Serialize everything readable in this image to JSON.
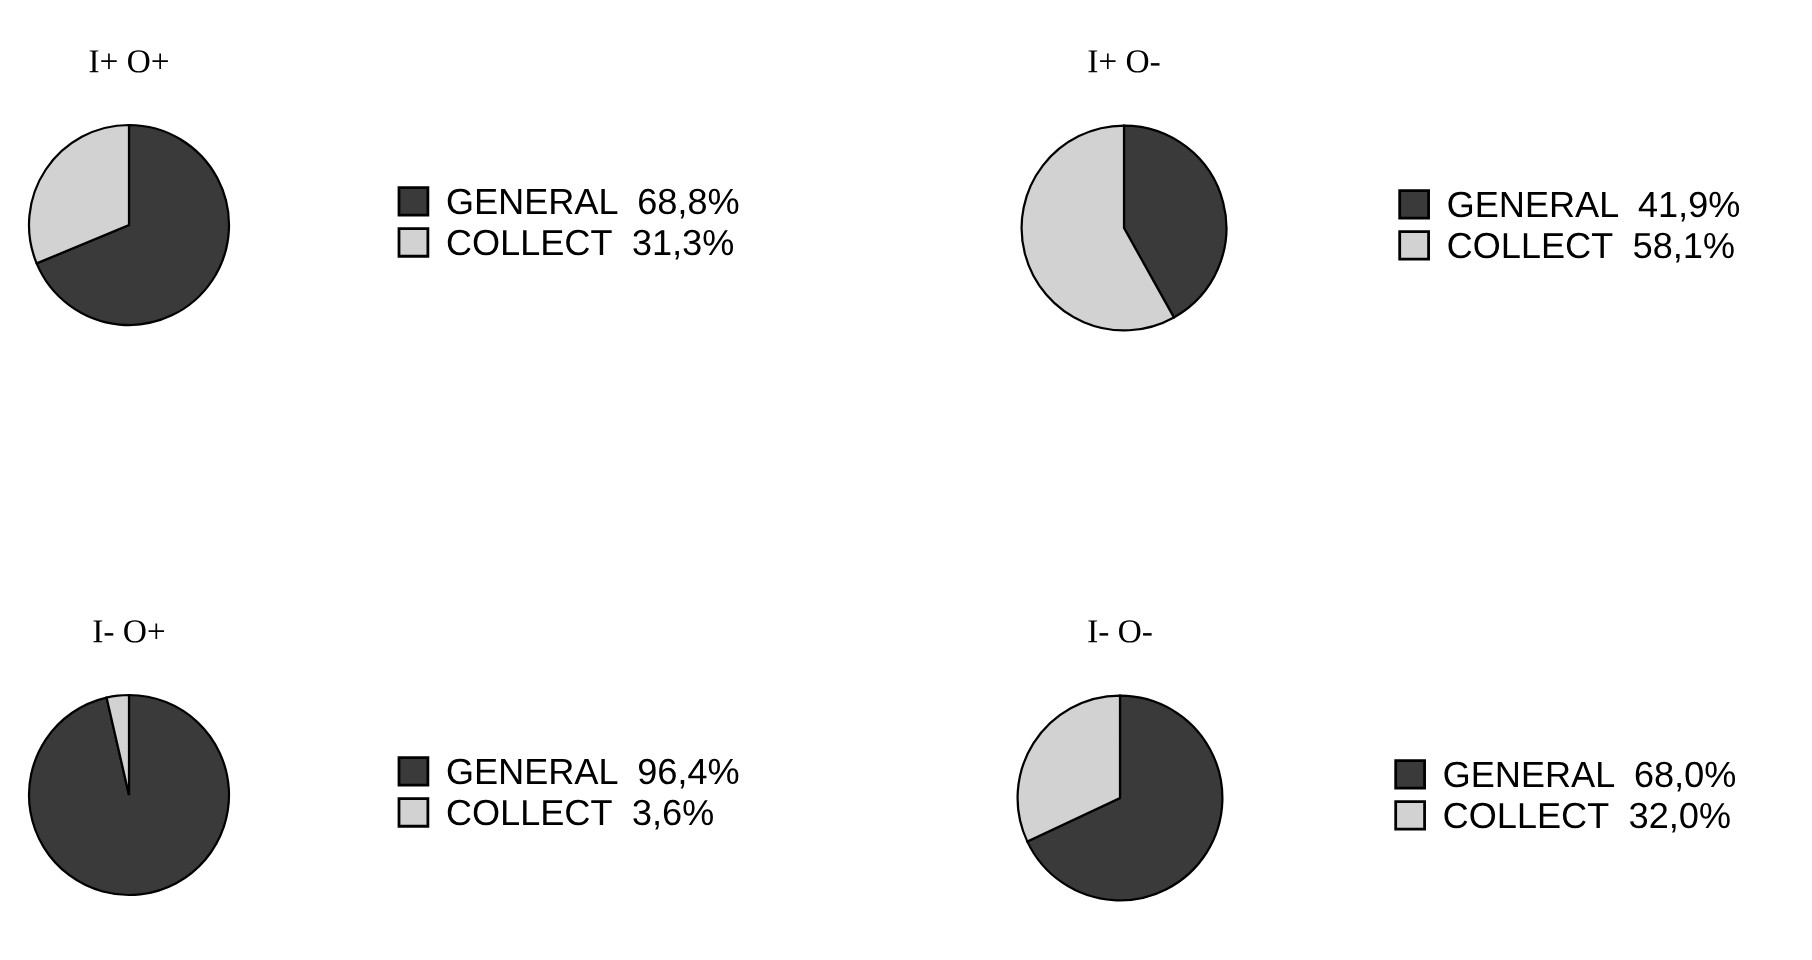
{
  "chart_data": [
    {
      "type": "pie",
      "title": "I+ O+",
      "categories": [
        "GENERAL",
        "COLLECT"
      ],
      "values": [
        68.8,
        31.3
      ],
      "value_labels": [
        "68,8%",
        "31,3%"
      ],
      "colors": [
        "#3a3a3a",
        "#d2d2d2"
      ],
      "legend": "right"
    },
    {
      "type": "pie",
      "title": "I+ O-",
      "categories": [
        "GENERAL",
        "COLLECT"
      ],
      "values": [
        41.9,
        58.1
      ],
      "value_labels": [
        "41,9%",
        "58,1%"
      ],
      "colors": [
        "#3a3a3a",
        "#d2d2d2"
      ],
      "legend": "right"
    },
    {
      "type": "pie",
      "title": "I- O+",
      "categories": [
        "GENERAL",
        "COLLECT"
      ],
      "values": [
        96.4,
        3.6
      ],
      "value_labels": [
        "96,4%",
        "3,6%"
      ],
      "colors": [
        "#3a3a3a",
        "#d2d2d2"
      ],
      "legend": "right"
    },
    {
      "type": "pie",
      "title": "I- O-",
      "categories": [
        "GENERAL",
        "COLLECT"
      ],
      "values": [
        68.0,
        32.0
      ],
      "value_labels": [
        "68,0%",
        "32,0%"
      ],
      "colors": [
        "#3a3a3a",
        "#d2d2d2"
      ],
      "legend": "right"
    }
  ]
}
